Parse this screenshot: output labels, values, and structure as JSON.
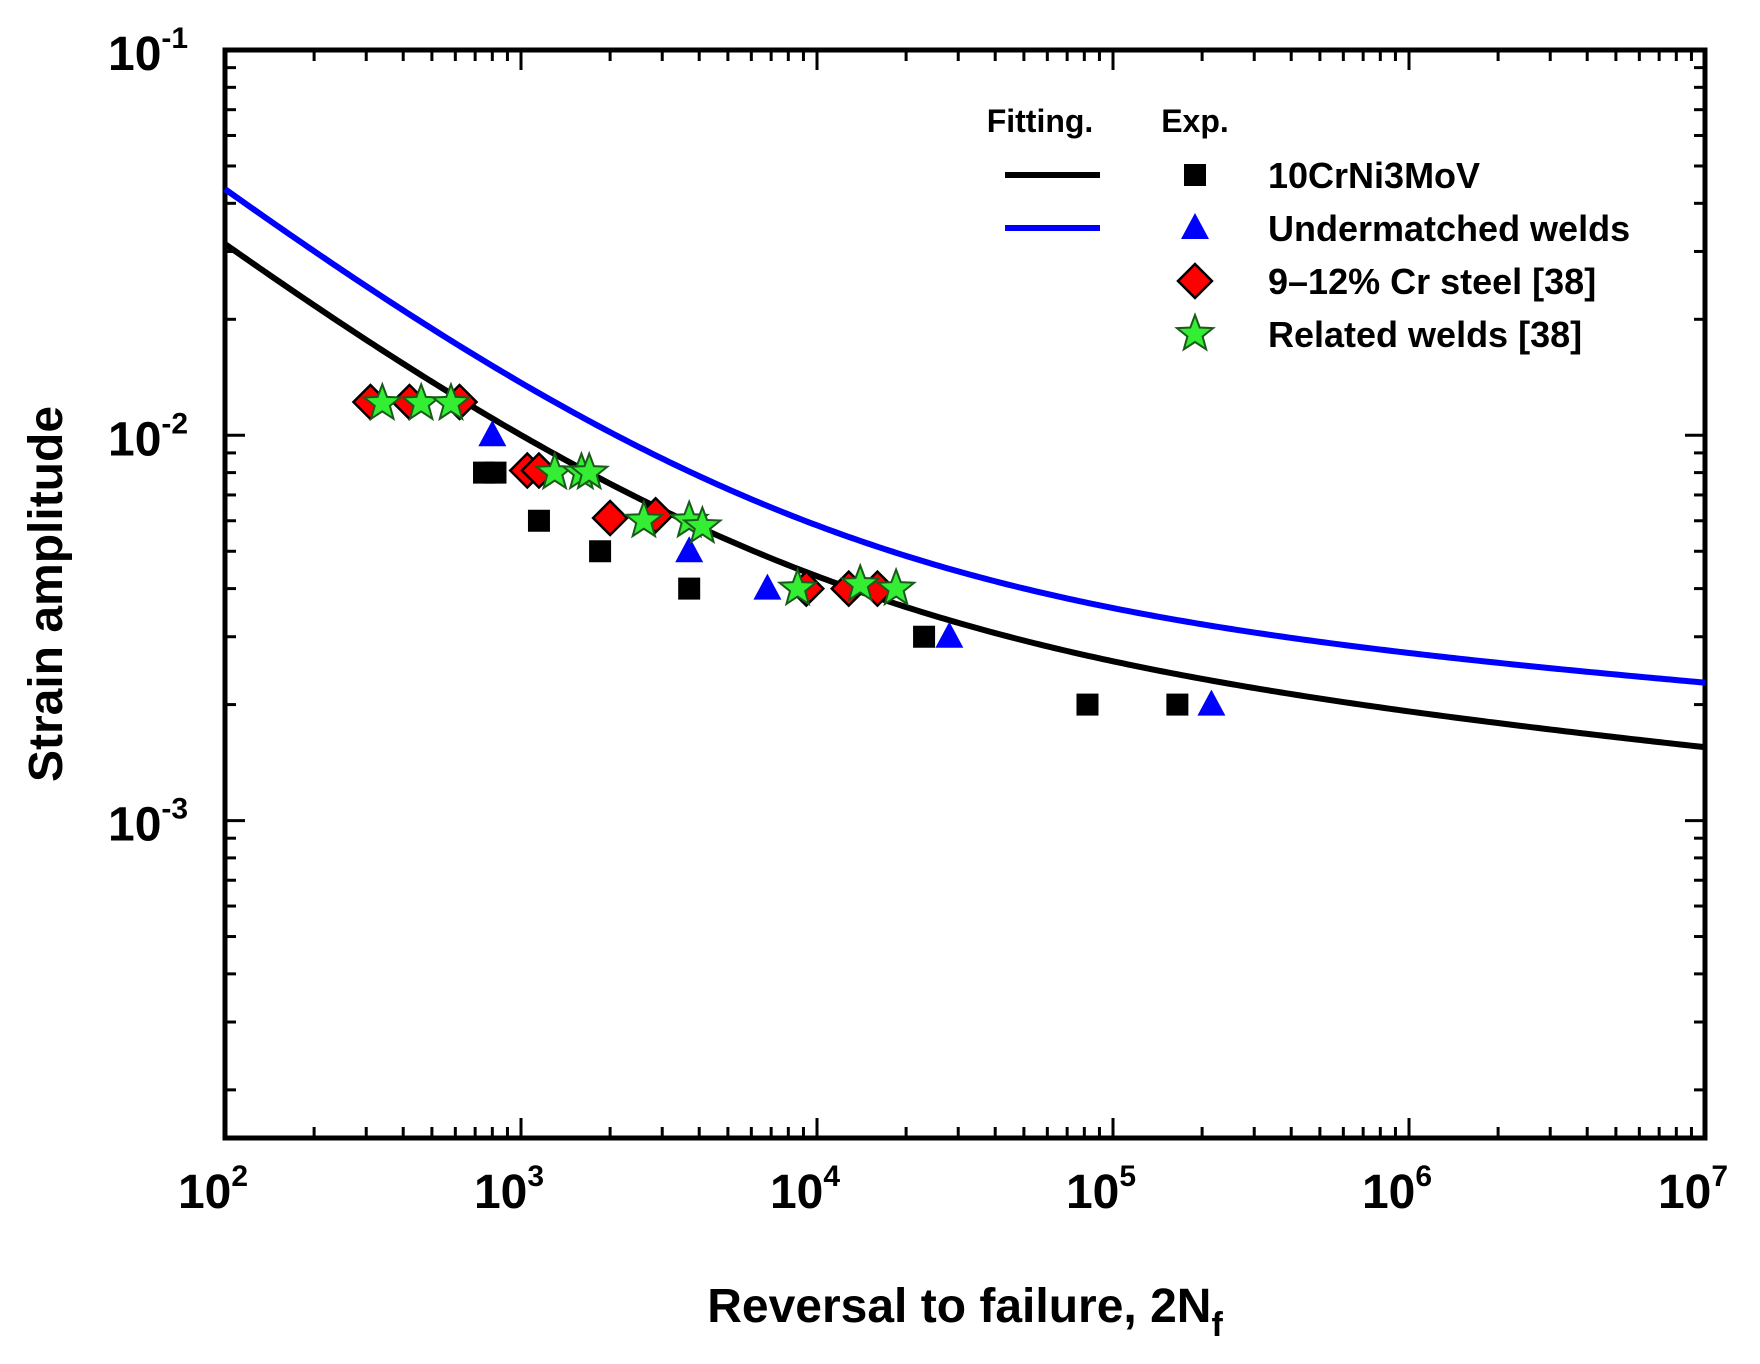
{
  "chart_data": {
    "type": "scatter",
    "title": "",
    "xlabel": "Reversal to failure, 2N",
    "xlabel_subscript": "f",
    "ylabel": "Strain amplitude",
    "xscale": "log",
    "yscale": "log",
    "xlim": [
      100,
      10000000
    ],
    "ylim": [
      0.00015,
      0.1
    ],
    "x_ticks": [
      {
        "value": 100,
        "base": "10",
        "exp": "2"
      },
      {
        "value": 1000,
        "base": "10",
        "exp": "3"
      },
      {
        "value": 10000,
        "base": "10",
        "exp": "4"
      },
      {
        "value": 100000,
        "base": "10",
        "exp": "5"
      },
      {
        "value": 1000000,
        "base": "10",
        "exp": "6"
      },
      {
        "value": 10000000,
        "base": "10",
        "exp": "7"
      }
    ],
    "y_ticks": [
      {
        "value": 0.1,
        "base": "10",
        "exp": "-1"
      },
      {
        "value": 0.01,
        "base": "10",
        "exp": "-2"
      },
      {
        "value": 0.001,
        "base": "10",
        "exp": "-3"
      }
    ],
    "legend": {
      "position": "top-right",
      "header_fit": "Fitting.",
      "header_exp": "Exp."
    },
    "fits": [
      {
        "name": "10CrNi3MoV fit",
        "color": "#000000",
        "sigma_over_E": 0.0051,
        "b": -0.075,
        "eps_f": 0.44,
        "c": -0.6
      },
      {
        "name": "Undermatched welds fit",
        "color": "#0000ff",
        "sigma_over_E": 0.0058,
        "b": -0.059,
        "eps_f": 0.62,
        "c": -0.6
      }
    ],
    "series": [
      {
        "name": "10CrNi3MoV",
        "marker": "square",
        "color": "#000000",
        "fit_color": "#000000",
        "x": [
          750,
          820,
          1150,
          1850,
          3700,
          23000,
          82000,
          165000
        ],
        "y": [
          0.008,
          0.008,
          0.006,
          0.005,
          0.004,
          0.003,
          0.002,
          0.002
        ]
      },
      {
        "name": "Undermatched welds",
        "marker": "triangle",
        "color": "#0000ff",
        "fit_color": "#0000ff",
        "x": [
          800,
          3700,
          6800,
          28000,
          215000
        ],
        "y": [
          0.01,
          0.005,
          0.004,
          0.003,
          0.002
        ]
      },
      {
        "name": "9–12% Cr steel [38]",
        "marker": "diamond",
        "color": "#ff0000",
        "fit_color": null,
        "x": [
          310,
          420,
          620,
          1050,
          1150,
          2000,
          2850,
          9200,
          12800,
          16000
        ],
        "y": [
          0.0122,
          0.0122,
          0.0122,
          0.0081,
          0.0081,
          0.0061,
          0.0062,
          0.004,
          0.004,
          0.004
        ]
      },
      {
        "name": "Related welds [38]",
        "marker": "star",
        "color": "#33ee33",
        "fit_color": null,
        "x": [
          340,
          460,
          580,
          1300,
          1600,
          1700,
          2600,
          3700,
          4100,
          8600,
          14000,
          18500
        ],
        "y": [
          0.0121,
          0.0121,
          0.0121,
          0.008,
          0.008,
          0.008,
          0.006,
          0.006,
          0.0058,
          0.004,
          0.0041,
          0.004
        ]
      }
    ]
  }
}
